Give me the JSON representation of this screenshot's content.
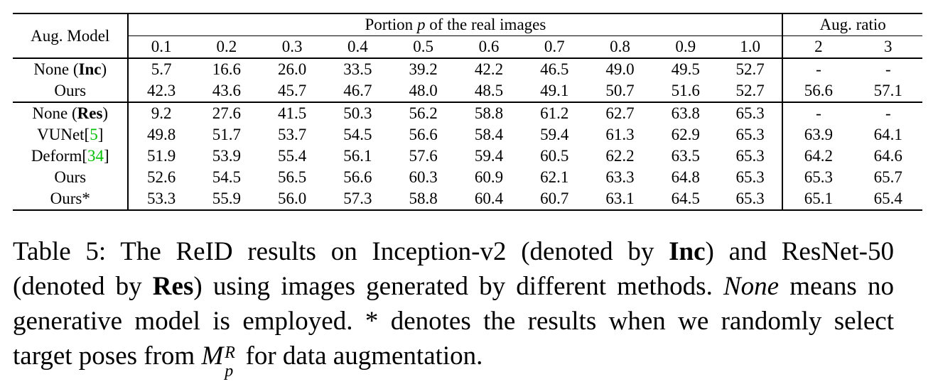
{
  "table": {
    "model_header": "Aug. Model",
    "portion_header_pre": "Portion",
    "portion_header_var": "p",
    "portion_header_post": "of the real images",
    "ratio_header": "Aug. ratio",
    "portion_cols": [
      "0.1",
      "0.2",
      "0.3",
      "0.4",
      "0.5",
      "0.6",
      "0.7",
      "0.8",
      "0.9",
      "1.0"
    ],
    "ratio_cols": [
      "2",
      "3"
    ],
    "rows": [
      {
        "model": "None (",
        "model_bold": "Inc",
        "model_tail": ")",
        "cite": "",
        "cells": [
          "5.7",
          "16.6",
          "26.0",
          "33.5",
          "39.2",
          "42.2",
          "46.5",
          "49.0",
          "49.5",
          "52.7",
          "-",
          "-"
        ],
        "bold": []
      },
      {
        "model": "Ours",
        "model_bold": "",
        "model_tail": "",
        "cite": "",
        "cells": [
          "42.3",
          "43.6",
          "45.7",
          "46.7",
          "48.0",
          "48.5",
          "49.1",
          "50.7",
          "51.6",
          "52.7",
          "56.6",
          "57.1"
        ],
        "bold": []
      },
      {
        "model": "None (",
        "model_bold": "Res",
        "model_tail": ")",
        "cite": "",
        "cells": [
          "9.2",
          "27.6",
          "41.5",
          "50.3",
          "56.2",
          "58.8",
          "61.2",
          "62.7",
          "63.8",
          "65.3",
          "-",
          "-"
        ],
        "bold": []
      },
      {
        "model": "VUNet[",
        "model_bold": "",
        "model_tail": "]",
        "cite": "5",
        "cells": [
          "49.8",
          "51.7",
          "53.7",
          "54.5",
          "56.6",
          "58.4",
          "59.4",
          "61.3",
          "62.9",
          "65.3",
          "63.9",
          "64.1"
        ],
        "bold": []
      },
      {
        "model": "Deform[",
        "model_bold": "",
        "model_tail": "]",
        "cite": "34",
        "cells": [
          "51.9",
          "53.9",
          "55.4",
          "56.1",
          "57.6",
          "59.4",
          "60.5",
          "62.2",
          "63.5",
          "65.3",
          "64.2",
          "64.6"
        ],
        "bold": []
      },
      {
        "model": "Ours",
        "model_bold": "",
        "model_tail": "",
        "cite": "",
        "cells": [
          "52.6",
          "54.5",
          "56.5",
          "56.6",
          "60.3",
          "60.9",
          "62.1",
          "63.3",
          "64.8",
          "65.3",
          "65.3",
          "65.7"
        ],
        "bold": [
          2,
          4,
          5,
          6,
          7,
          8,
          10,
          11
        ]
      },
      {
        "model": "Ours*",
        "model_bold": "",
        "model_tail": "",
        "cite": "",
        "cells": [
          "53.3",
          "55.9",
          "56.0",
          "57.3",
          "58.8",
          "60.4",
          "60.7",
          "63.1",
          "64.5",
          "65.3",
          "65.1",
          "65.4"
        ],
        "bold": [
          0,
          1,
          3
        ]
      }
    ]
  },
  "caption": {
    "p1": "Table 5: The ReID results on Inception-v2 (denoted by ",
    "b1": "Inc",
    "p2": ") and ResNet-50 (denoted by ",
    "b2": "Res",
    "p3": ") using images generated by different methods. ",
    "i1": "None",
    "p4": " means no generative model is employed.  * denotes the results when we randomly select target poses from ",
    "m_base": "M",
    "m_sup": "R",
    "m_sub": "p",
    "p5": " for data augmentation."
  },
  "colors": {
    "citation": "#00c000"
  }
}
